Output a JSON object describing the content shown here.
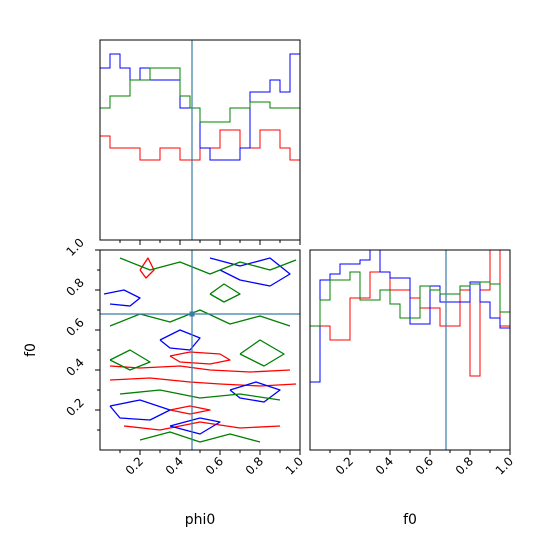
{
  "chart_data": [
    {
      "type": "histogram",
      "panel": "phi0-marginal",
      "xlim": [
        0,
        1
      ],
      "truth": 0.46,
      "bins": 20,
      "series": [
        {
          "color": "#ff0000",
          "values": [
            0.52,
            0.46,
            0.46,
            0.46,
            0.4,
            0.4,
            0.46,
            0.46,
            0.4,
            0.4,
            0.46,
            0.46,
            0.55,
            0.55,
            0.46,
            0.46,
            0.55,
            0.55,
            0.46,
            0.4
          ]
        },
        {
          "color": "#0000ff",
          "values": [
            0.86,
            0.93,
            0.86,
            0.8,
            0.86,
            0.8,
            0.8,
            0.8,
            0.66,
            0.66,
            0.46,
            0.4,
            0.4,
            0.4,
            0.46,
            0.74,
            0.74,
            0.8,
            0.74,
            0.93
          ]
        },
        {
          "color": "#008000",
          "values": [
            0.66,
            0.72,
            0.72,
            0.8,
            0.8,
            0.86,
            0.86,
            0.86,
            0.72,
            0.66,
            0.59,
            0.59,
            0.59,
            0.66,
            0.66,
            0.69,
            0.69,
            0.66,
            0.66,
            0.66
          ]
        }
      ]
    },
    {
      "type": "contour",
      "panel": "phi0-f0-joint",
      "xlabel": "phi0",
      "ylabel": "f0",
      "xlim": [
        0,
        1
      ],
      "ylim": [
        0,
        1
      ],
      "truth": [
        0.46,
        0.68
      ],
      "xticks": [
        "0.2",
        "0.4",
        "0.6",
        "0.8",
        "1.0"
      ],
      "yticks": [
        "0.2",
        "0.4",
        "0.6",
        "0.8",
        "1.0"
      ],
      "series": [
        {
          "color": "#ff0000",
          "contours": [
            [
              [
                0.05,
                0.42
              ],
              [
                0.2,
                0.41
              ],
              [
                0.4,
                0.42
              ],
              [
                0.55,
                0.4
              ],
              [
                0.75,
                0.39
              ],
              [
                0.95,
                0.4
              ]
            ],
            [
              [
                0.05,
                0.35
              ],
              [
                0.25,
                0.36
              ],
              [
                0.45,
                0.34
              ],
              [
                0.6,
                0.33
              ],
              [
                0.8,
                0.32
              ],
              [
                0.98,
                0.33
              ]
            ],
            [
              [
                0.35,
                0.47
              ],
              [
                0.45,
                0.49
              ],
              [
                0.6,
                0.48
              ],
              [
                0.65,
                0.45
              ],
              [
                0.55,
                0.43
              ],
              [
                0.4,
                0.44
              ],
              [
                0.35,
                0.47
              ]
            ],
            [
              [
                0.2,
                0.9
              ],
              [
                0.24,
                0.96
              ],
              [
                0.27,
                0.9
              ],
              [
                0.23,
                0.86
              ],
              [
                0.2,
                0.9
              ]
            ],
            [
              [
                0.35,
                0.2
              ],
              [
                0.45,
                0.22
              ],
              [
                0.55,
                0.2
              ],
              [
                0.45,
                0.18
              ],
              [
                0.35,
                0.2
              ]
            ],
            [
              [
                0.12,
                0.12
              ],
              [
                0.3,
                0.1
              ],
              [
                0.5,
                0.14
              ],
              [
                0.7,
                0.11
              ],
              [
                0.9,
                0.12
              ]
            ]
          ]
        },
        {
          "color": "#0000ff",
          "contours": [
            [
              [
                0.02,
                0.78
              ],
              [
                0.12,
                0.8
              ],
              [
                0.2,
                0.76
              ],
              [
                0.15,
                0.72
              ],
              [
                0.05,
                0.73
              ]
            ],
            [
              [
                0.55,
                0.96
              ],
              [
                0.7,
                0.92
              ],
              [
                0.85,
                0.96
              ],
              [
                0.95,
                0.88
              ],
              [
                0.85,
                0.82
              ],
              [
                0.7,
                0.85
              ],
              [
                0.6,
                0.9
              ]
            ],
            [
              [
                0.3,
                0.55
              ],
              [
                0.4,
                0.6
              ],
              [
                0.5,
                0.56
              ],
              [
                0.45,
                0.5
              ],
              [
                0.35,
                0.51
              ],
              [
                0.3,
                0.55
              ]
            ],
            [
              [
                0.05,
                0.22
              ],
              [
                0.2,
                0.25
              ],
              [
                0.35,
                0.2
              ],
              [
                0.25,
                0.15
              ],
              [
                0.1,
                0.16
              ],
              [
                0.05,
                0.22
              ]
            ],
            [
              [
                0.65,
                0.3
              ],
              [
                0.78,
                0.34
              ],
              [
                0.9,
                0.3
              ],
              [
                0.82,
                0.24
              ],
              [
                0.7,
                0.26
              ],
              [
                0.65,
                0.3
              ]
            ],
            [
              [
                0.35,
                0.12
              ],
              [
                0.5,
                0.08
              ],
              [
                0.6,
                0.14
              ],
              [
                0.5,
                0.16
              ],
              [
                0.35,
                0.12
              ]
            ]
          ]
        },
        {
          "color": "#008000",
          "contours": [
            [
              [
                0.1,
                0.96
              ],
              [
                0.25,
                0.9
              ],
              [
                0.4,
                0.94
              ],
              [
                0.55,
                0.88
              ],
              [
                0.7,
                0.94
              ],
              [
                0.85,
                0.9
              ],
              [
                0.98,
                0.95
              ]
            ],
            [
              [
                0.05,
                0.62
              ],
              [
                0.2,
                0.68
              ],
              [
                0.35,
                0.64
              ],
              [
                0.5,
                0.7
              ],
              [
                0.65,
                0.63
              ],
              [
                0.8,
                0.67
              ],
              [
                0.95,
                0.62
              ]
            ],
            [
              [
                0.55,
                0.78
              ],
              [
                0.62,
                0.83
              ],
              [
                0.7,
                0.78
              ],
              [
                0.62,
                0.74
              ],
              [
                0.55,
                0.78
              ]
            ],
            [
              [
                0.05,
                0.45
              ],
              [
                0.15,
                0.5
              ],
              [
                0.25,
                0.44
              ],
              [
                0.15,
                0.4
              ],
              [
                0.05,
                0.45
              ]
            ],
            [
              [
                0.7,
                0.48
              ],
              [
                0.8,
                0.55
              ],
              [
                0.92,
                0.48
              ],
              [
                0.82,
                0.42
              ],
              [
                0.7,
                0.48
              ]
            ],
            [
              [
                0.1,
                0.28
              ],
              [
                0.3,
                0.3
              ],
              [
                0.5,
                0.26
              ],
              [
                0.7,
                0.28
              ],
              [
                0.9,
                0.25
              ]
            ],
            [
              [
                0.2,
                0.05
              ],
              [
                0.35,
                0.09
              ],
              [
                0.5,
                0.04
              ],
              [
                0.65,
                0.08
              ],
              [
                0.8,
                0.04
              ]
            ]
          ]
        }
      ]
    },
    {
      "type": "histogram",
      "panel": "f0-marginal",
      "xlabel": "f0",
      "xlim": [
        0,
        1
      ],
      "truth": 0.68,
      "bins": 20,
      "xticks": [
        "0.2",
        "0.4",
        "0.6",
        "0.8",
        "1.0"
      ],
      "series": [
        {
          "color": "#ff0000",
          "values": [
            0.62,
            0.62,
            0.55,
            0.55,
            0.76,
            0.76,
            0.89,
            0.89,
            0.8,
            0.8,
            0.76,
            0.71,
            0.71,
            0.62,
            0.62,
            0.8,
            0.37,
            0.8,
            1.0,
            0.62
          ]
        },
        {
          "color": "#0000ff",
          "values": [
            0.34,
            0.85,
            0.88,
            0.93,
            0.93,
            0.95,
            1.0,
            0.89,
            0.86,
            0.86,
            0.63,
            0.63,
            0.82,
            0.74,
            0.74,
            0.74,
            0.84,
            0.74,
            0.66,
            0.61
          ]
        },
        {
          "color": "#008000",
          "values": [
            0.62,
            0.75,
            0.85,
            0.85,
            0.89,
            0.75,
            0.75,
            0.8,
            0.73,
            0.66,
            0.66,
            0.82,
            0.8,
            0.78,
            0.78,
            0.82,
            0.83,
            0.84,
            0.83,
            0.69
          ]
        }
      ]
    }
  ]
}
